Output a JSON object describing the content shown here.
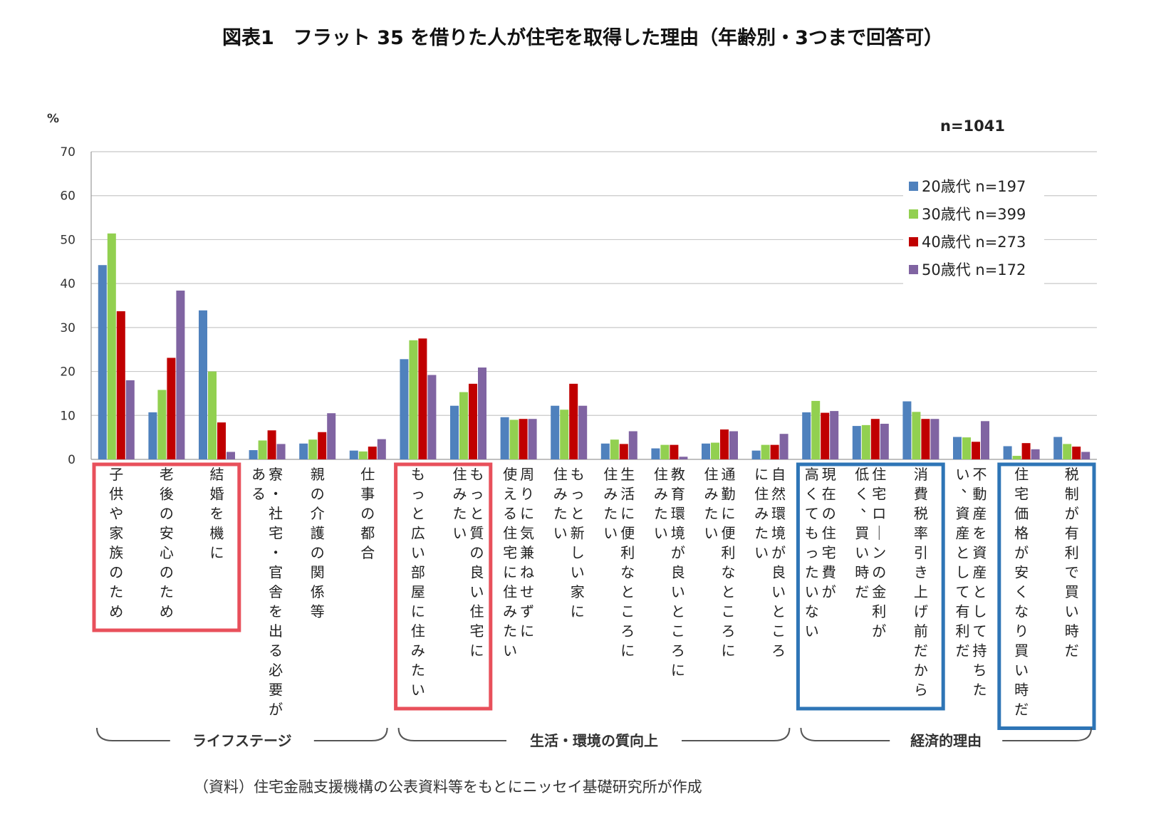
{
  "chart_data": {
    "type": "bar",
    "title": "図表1　フラット 35 を借りた人が住宅を取得した理由（年齢別・3つまで回答可）",
    "ylabel": "%",
    "ylim": [
      0,
      70
    ],
    "yticks": [
      0,
      10,
      20,
      30,
      40,
      50,
      60,
      70
    ],
    "grid": true,
    "legend_position": "top-right",
    "total_n": "n=1041",
    "categories": [
      [
        "子供や家族のため"
      ],
      [
        "老後の安心のため"
      ],
      [
        "結婚を機に"
      ],
      [
        "寮・社宅・官舎を出る必要が",
        "ある"
      ],
      [
        "親の介護の関係等"
      ],
      [
        "仕事の都合"
      ],
      [
        "もっと広い部屋に住みたい"
      ],
      [
        "もっと質の良い住宅に",
        "住みたい"
      ],
      [
        "周りに気兼ねせずに",
        "使える住宅に住みたい"
      ],
      [
        "もっと新しい家に",
        "住みたい"
      ],
      [
        "生活に便利なところに",
        "住みたい"
      ],
      [
        "教育環境が良いところに",
        "住みたい"
      ],
      [
        "通勤に便利なところに",
        "住みたい"
      ],
      [
        "自然環境が良いところ",
        "に住みたい"
      ],
      [
        "現在の住宅費が",
        "高くてもったいない"
      ],
      [
        "住宅ローンの金利が",
        "低く、買い時だ"
      ],
      [
        "消費税率引き上げ前だから"
      ],
      [
        "不動産を資産として持ちた",
        "い、資産として有利だ"
      ],
      [
        "住宅価格が安くなり買い時だ"
      ],
      [
        "税制が有利で買い時だ"
      ]
    ],
    "series": [
      {
        "name": "20歳代 n=197",
        "color": "#4f81bd",
        "values": [
          44.2,
          10.7,
          33.9,
          2.1,
          3.6,
          2.0,
          22.8,
          12.2,
          9.6,
          12.2,
          3.6,
          2.5,
          3.6,
          2.0,
          10.7,
          7.6,
          13.2,
          5.1,
          3.0,
          5.1
        ]
      },
      {
        "name": "30歳代 n=399",
        "color": "#92d050",
        "values": [
          51.4,
          15.8,
          20.0,
          4.3,
          4.5,
          1.8,
          27.1,
          15.3,
          9.0,
          11.3,
          4.5,
          3.3,
          3.8,
          3.3,
          13.3,
          7.8,
          10.8,
          5.0,
          0.8,
          3.5
        ]
      },
      {
        "name": "40歳代 n=273",
        "color": "#c00000",
        "values": [
          33.7,
          23.1,
          8.4,
          6.6,
          6.2,
          2.9,
          27.5,
          17.2,
          9.2,
          17.2,
          3.5,
          3.3,
          6.8,
          3.3,
          10.6,
          9.2,
          9.2,
          4.0,
          3.7,
          2.9
        ]
      },
      {
        "name": "50歳代 n=172",
        "color": "#8064a2",
        "values": [
          18.0,
          38.4,
          1.7,
          3.5,
          10.5,
          4.6,
          19.2,
          20.9,
          9.2,
          12.2,
          6.4,
          0.6,
          6.4,
          5.8,
          11.0,
          8.1,
          9.2,
          8.7,
          2.3,
          1.7
        ]
      }
    ],
    "groups": [
      {
        "label": "ライフステージ",
        "from": 0,
        "to": 5
      },
      {
        "label": "生活・環境の質向上",
        "from": 6,
        "to": 13
      },
      {
        "label": "経済的理由",
        "from": 14,
        "to": 19
      }
    ],
    "highlights": [
      {
        "from": 0,
        "to": 2,
        "color": "#e8505b"
      },
      {
        "from": 6,
        "to": 7,
        "color": "#e8505b"
      },
      {
        "from": 14,
        "to": 16,
        "color": "#2e75b6"
      },
      {
        "from": 18,
        "to": 19,
        "color": "#2e75b6"
      }
    ],
    "source": "（資料）住宅金融支援機構の公表資料等をもとにニッセイ基礎研究所が作成"
  }
}
